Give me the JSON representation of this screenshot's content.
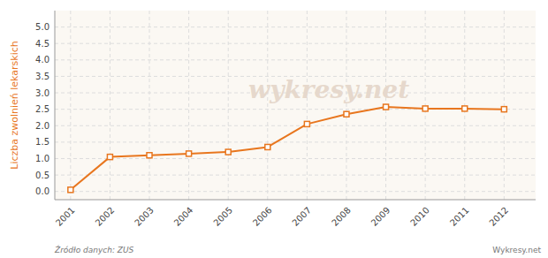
{
  "chart_data": {
    "type": "line",
    "y_label": "Liczba zwolnień lekarskich",
    "x": [
      2001,
      2002,
      2003,
      2004,
      2005,
      2006,
      2007,
      2008,
      2009,
      2010,
      2011,
      2012
    ],
    "values": [
      0.05,
      1.05,
      1.1,
      1.15,
      1.2,
      1.35,
      2.05,
      2.35,
      2.57,
      2.52,
      2.52,
      2.5
    ],
    "color": "#e8761e",
    "marker": "square",
    "line_style": "solid",
    "xlim": [
      2000.6,
      2012.8
    ],
    "xticks": [
      2001,
      2002,
      2003,
      2004,
      2005,
      2006,
      2007,
      2008,
      2009,
      2010,
      2011,
      2012
    ],
    "ylim": [
      -0.25,
      5.5
    ],
    "yticks": [
      {
        "value": 0.0,
        "label": "0.0"
      },
      0.5,
      {
        "value": 1.0,
        "label": "1.0"
      },
      1.5,
      {
        "value": 2.0,
        "label": "2.0"
      },
      2.5,
      {
        "value": 3.0,
        "label": "3.0"
      },
      3.5,
      {
        "value": 4.0,
        "label": "4.0"
      },
      4.5,
      {
        "value": 5.0,
        "label": "5.0"
      }
    ],
    "grid": true,
    "annotations": [
      "wykresy.net",
      "Źródło danych:  ZUS",
      "Wykresy.net"
    ]
  }
}
